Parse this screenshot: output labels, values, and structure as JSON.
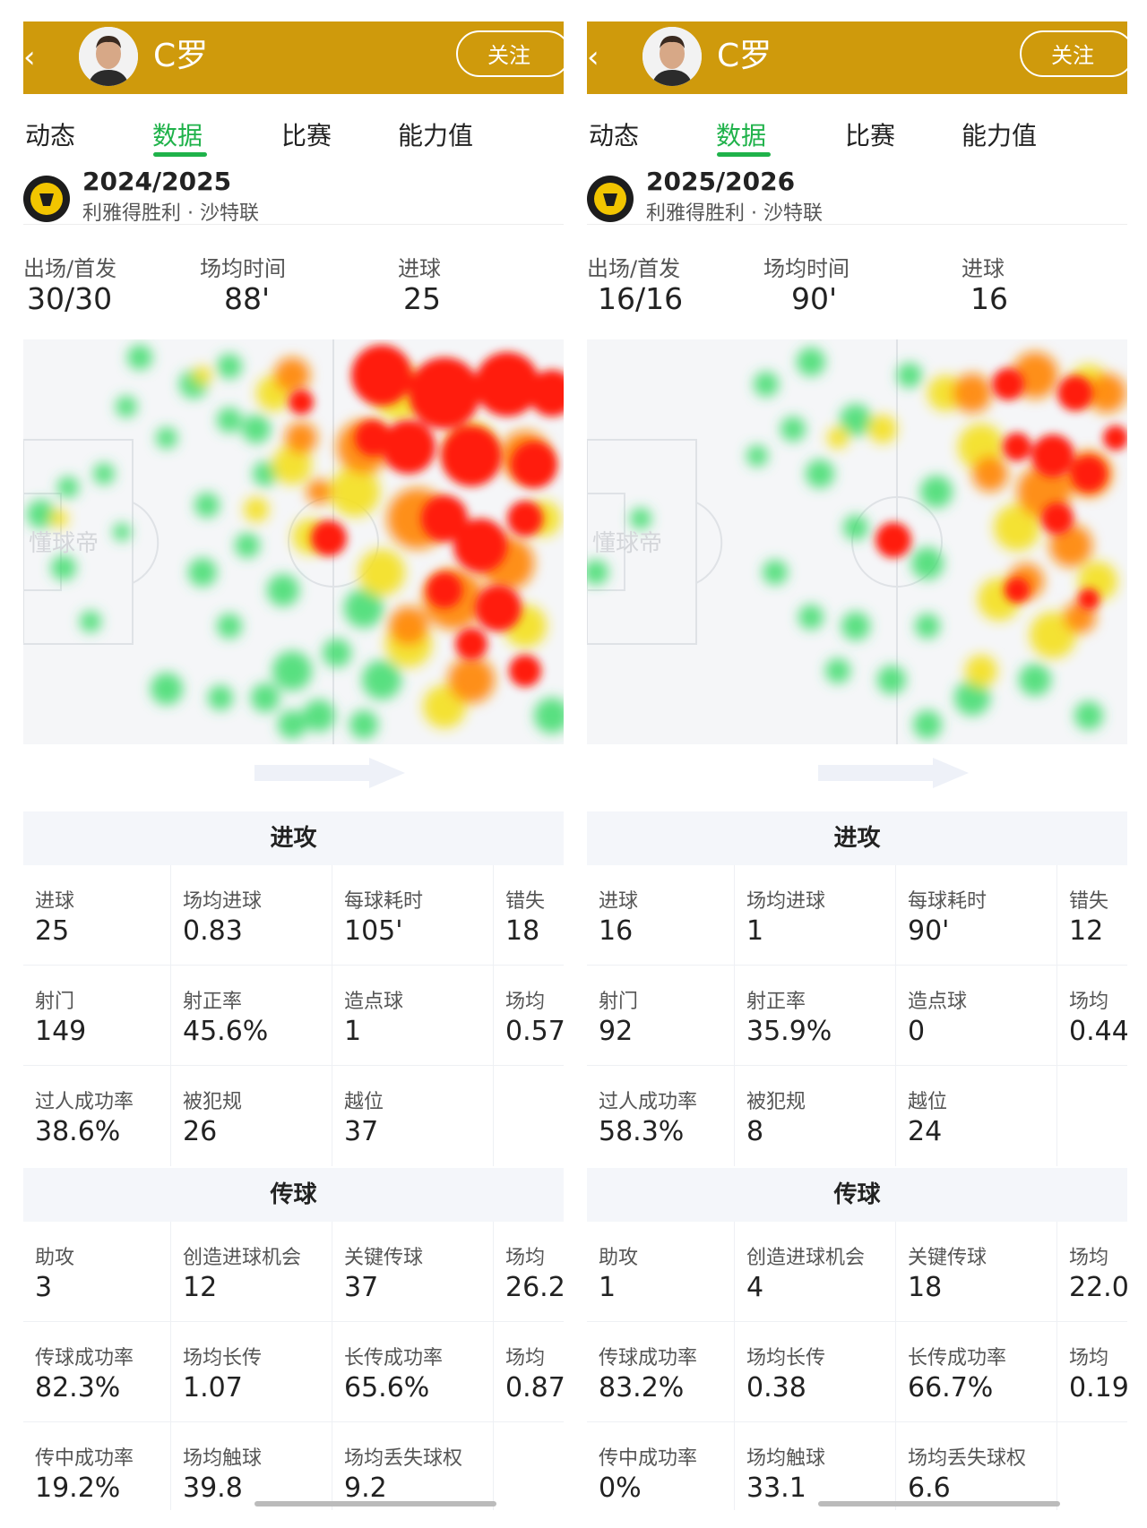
{
  "panels": [
    {
      "header": {
        "back_icon": "chevron-left-icon",
        "player_name": "C罗",
        "follow_label": "关注"
      },
      "tabs": [
        "动态",
        "数据",
        "比赛",
        "能力值"
      ],
      "active_tab": 1,
      "season": {
        "year": "2024/2025",
        "club_league": "利雅得胜利 · 沙特联"
      },
      "summary": [
        {
          "label": "出场/首发",
          "value": "30/30"
        },
        {
          "label": "场均时间",
          "value": "88'"
        },
        {
          "label": "进球",
          "value": "25"
        }
      ],
      "heatmap_watermark": "懂球帝",
      "attack": {
        "title": "进攻",
        "rows": [
          [
            {
              "label": "进球",
              "value": "25"
            },
            {
              "label": "场均进球",
              "value": "0.83"
            },
            {
              "label": "每球耗时",
              "value": "105'"
            },
            {
              "label": "错失",
              "value": "18"
            }
          ],
          [
            {
              "label": "射门",
              "value": "149"
            },
            {
              "label": "射正率",
              "value": "45.6%"
            },
            {
              "label": "造点球",
              "value": "1"
            },
            {
              "label": "场均",
              "value": "0.57"
            }
          ],
          [
            {
              "label": "过人成功率",
              "value": "38.6%"
            },
            {
              "label": "被犯规",
              "value": "26"
            },
            {
              "label": "越位",
              "value": "37"
            },
            {
              "label": "",
              "value": ""
            }
          ]
        ]
      },
      "passing": {
        "title": "传球",
        "rows": [
          [
            {
              "label": "助攻",
              "value": "3"
            },
            {
              "label": "创造进球机会",
              "value": "12"
            },
            {
              "label": "关键传球",
              "value": "37"
            },
            {
              "label": "场均",
              "value": "26.2"
            }
          ],
          [
            {
              "label": "传球成功率",
              "value": "82.3%"
            },
            {
              "label": "场均长传",
              "value": "1.07"
            },
            {
              "label": "长传成功率",
              "value": "65.6%"
            },
            {
              "label": "场均",
              "value": "0.87"
            }
          ],
          [
            {
              "label": "传中成功率",
              "value": "19.2%"
            },
            {
              "label": "场均触球",
              "value": "39.8"
            },
            {
              "label": "场均丢失球权",
              "value": "9.2"
            },
            {
              "label": "",
              "value": ""
            }
          ]
        ]
      }
    },
    {
      "header": {
        "back_icon": "chevron-left-icon",
        "player_name": "C罗",
        "follow_label": "关注"
      },
      "tabs": [
        "动态",
        "数据",
        "比赛",
        "能力值"
      ],
      "active_tab": 1,
      "season": {
        "year": "2025/2026",
        "club_league": "利雅得胜利 · 沙特联"
      },
      "summary": [
        {
          "label": "出场/首发",
          "value": "16/16"
        },
        {
          "label": "场均时间",
          "value": "90'"
        },
        {
          "label": "进球",
          "value": "16"
        }
      ],
      "heatmap_watermark": "懂球帝",
      "attack": {
        "title": "进攻",
        "rows": [
          [
            {
              "label": "进球",
              "value": "16"
            },
            {
              "label": "场均进球",
              "value": "1"
            },
            {
              "label": "每球耗时",
              "value": "90'"
            },
            {
              "label": "错失",
              "value": "12"
            }
          ],
          [
            {
              "label": "射门",
              "value": "92"
            },
            {
              "label": "射正率",
              "value": "35.9%"
            },
            {
              "label": "造点球",
              "value": "0"
            },
            {
              "label": "场均",
              "value": "0.44"
            }
          ],
          [
            {
              "label": "过人成功率",
              "value": "58.3%"
            },
            {
              "label": "被犯规",
              "value": "8"
            },
            {
              "label": "越位",
              "value": "24"
            },
            {
              "label": "",
              "value": ""
            }
          ]
        ]
      },
      "passing": {
        "title": "传球",
        "rows": [
          [
            {
              "label": "助攻",
              "value": "1"
            },
            {
              "label": "创造进球机会",
              "value": "4"
            },
            {
              "label": "关键传球",
              "value": "18"
            },
            {
              "label": "场均",
              "value": "22.0"
            }
          ],
          [
            {
              "label": "传球成功率",
              "value": "83.2%"
            },
            {
              "label": "场均长传",
              "value": "0.38"
            },
            {
              "label": "长传成功率",
              "value": "66.7%"
            },
            {
              "label": "场均",
              "value": "0.19"
            }
          ],
          [
            {
              "label": "传中成功率",
              "value": "0%"
            },
            {
              "label": "场均触球",
              "value": "33.1"
            },
            {
              "label": "场均丢失球权",
              "value": "6.6"
            },
            {
              "label": "",
              "value": ""
            }
          ]
        ]
      }
    }
  ],
  "colors": {
    "header_bg": "#cf9a0c",
    "active_tab": "#1fb24a",
    "section_bg": "#f4f6fa"
  }
}
